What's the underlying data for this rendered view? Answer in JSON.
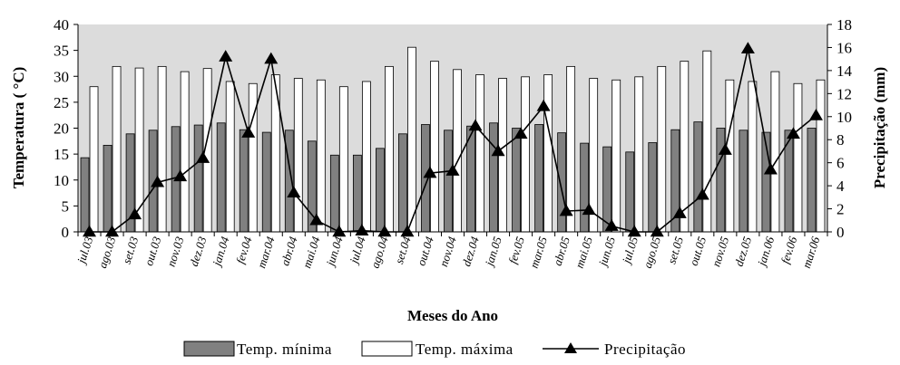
{
  "chart_data": {
    "type": "bar",
    "xlabel": "Meses do Ano",
    "ylabel": "Temperatura ( °C)",
    "y2label": "Precipitação (mm)",
    "ylim": [
      0,
      40
    ],
    "y2lim": [
      0,
      18
    ],
    "yticks": [
      "0",
      "5",
      "10",
      "15",
      "20",
      "25",
      "30",
      "35",
      "40"
    ],
    "y2ticks": [
      "0",
      "2",
      "4",
      "6",
      "8",
      "10",
      "12",
      "14",
      "16",
      "18"
    ],
    "legend_position": "bottom",
    "grid": false,
    "plot_background": "#dcdcdc",
    "categories": [
      "jul.03",
      "ago.03",
      "set.03",
      "out.03",
      "nov.03",
      "dez.03",
      "jan.04",
      "fev.04",
      "mar.04",
      "abr.04",
      "mai.04",
      "jun.04",
      "jul.04",
      "ago.04",
      "set.04",
      "out.04",
      "nov.04",
      "dez.04",
      "jan.05",
      "fev.05",
      "mar.05",
      "abr.05",
      "mai.05",
      "jun.05",
      "jul.05",
      "ago.05",
      "set.05",
      "out.05",
      "nov.05",
      "dez.05",
      "jan.06",
      "fev.06",
      "mar.06"
    ],
    "series": [
      {
        "name": "Temp. mínima",
        "kind": "bar",
        "color": "#808080",
        "values": [
          14.3,
          16.7,
          18.9,
          19.6,
          20.3,
          20.6,
          21.0,
          19.7,
          19.2,
          19.6,
          17.5,
          14.8,
          14.8,
          16.1,
          18.9,
          20.7,
          19.6,
          20.4,
          21.0,
          20.0,
          20.7,
          19.1,
          17.1,
          16.4,
          15.4,
          17.2,
          19.7,
          21.2,
          20.0,
          19.6,
          19.2,
          19.6,
          20.0
        ]
      },
      {
        "name": "Temp. máxima",
        "kind": "bar",
        "color": "#ffffff",
        "values": [
          28.0,
          31.9,
          31.6,
          31.9,
          30.9,
          31.5,
          29.0,
          28.6,
          30.3,
          29.6,
          29.3,
          28.0,
          29.0,
          31.9,
          35.6,
          32.9,
          31.3,
          30.3,
          29.6,
          29.9,
          30.3,
          31.9,
          29.6,
          29.3,
          29.9,
          31.9,
          32.9,
          34.9,
          29.3,
          29.0,
          30.9,
          28.6,
          29.3
        ]
      },
      {
        "name": "Precipitação",
        "kind": "line",
        "axis": "y2",
        "color": "#000000",
        "values": [
          0.0,
          0.0,
          1.5,
          4.3,
          4.8,
          6.4,
          15.2,
          8.6,
          15.0,
          3.4,
          1.0,
          0.0,
          0.1,
          0.0,
          0.0,
          5.1,
          5.3,
          9.2,
          7.0,
          8.5,
          10.9,
          1.8,
          1.9,
          0.5,
          0.0,
          0.0,
          1.6,
          3.2,
          7.1,
          15.9,
          5.4,
          8.5,
          10.1
        ]
      }
    ]
  }
}
